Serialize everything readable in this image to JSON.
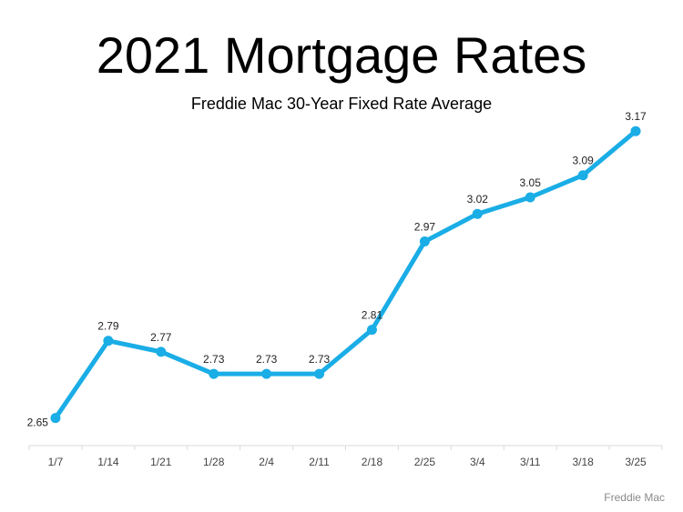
{
  "chart_data": {
    "type": "line",
    "title": "2021 Mortgage Rates",
    "subtitle": "Freddie Mac 30-Year Fixed Rate Average",
    "source": "Freddie Mac",
    "categories": [
      "1/7",
      "1/14",
      "1/21",
      "1/28",
      "2/4",
      "2/11",
      "2/18",
      "2/25",
      "3/4",
      "3/11",
      "3/18",
      "3/25"
    ],
    "series": [
      {
        "values": [
          2.65,
          2.79,
          2.77,
          2.73,
          2.73,
          2.73,
          2.81,
          2.97,
          3.02,
          3.05,
          3.09,
          3.17
        ]
      }
    ],
    "data_labels": [
      "2.65",
      "2.79",
      "2.77",
      "2.73",
      "2.73",
      "2.73",
      "2.81",
      "2.97",
      "3.02",
      "3.05",
      "3.09",
      "3.17"
    ],
    "ylim": [
      2.6,
      3.2
    ],
    "grid": false,
    "legend": "none",
    "y_axis_visible": false,
    "colors": {
      "line": "#1AADE6",
      "axis": "#d9d9d9"
    }
  }
}
